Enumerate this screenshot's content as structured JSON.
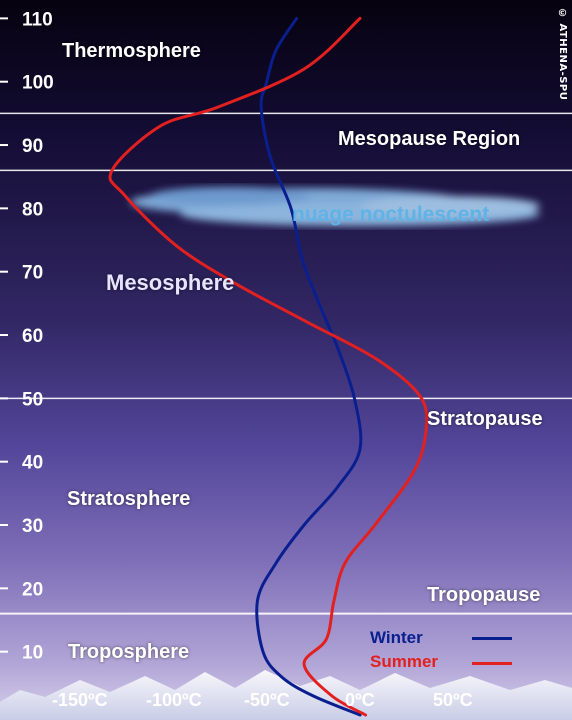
{
  "credit": "© ATHENA-SPU",
  "layers": {
    "thermosphere": "Thermosphere",
    "mesopause": "Mesopause Region",
    "cloud": "nuage noctulescent",
    "mesosphere": "Mesosphere",
    "stratopause": "Stratopause",
    "stratosphere": "Stratosphere",
    "tropopause": "Tropopause",
    "troposphere": "Troposphere"
  },
  "colors": {
    "winter": "#0a1f8f",
    "summer": "#e32020",
    "cloud_text": "#5fb3e6",
    "boundary": "#ffffff"
  },
  "chart_data": {
    "type": "line",
    "yticks": [
      "10",
      "20",
      "30",
      "40",
      "50",
      "60",
      "70",
      "80",
      "90",
      "100",
      "110"
    ],
    "xticks": [
      "-150ºC",
      "-100ºC",
      "-50ºC",
      "0ºC",
      "50ºC"
    ],
    "ylim": [
      0,
      110
    ],
    "xlim": [
      -150,
      50
    ],
    "boundaries": [
      16,
      50,
      86,
      95
    ],
    "series": [
      {
        "name": "Winter",
        "x": [
          0,
          -25,
          -42,
          -52,
          -55,
          -45,
          -30,
          -12,
          0,
          -3,
          -12,
          -22,
          -31,
          -37,
          -48,
          -53,
          -50,
          -45,
          -34
        ],
        "y": [
          0,
          3,
          6,
          10,
          18,
          24,
          30,
          36,
          42,
          50,
          58,
          65,
          72,
          80,
          88,
          96,
          100,
          105,
          110
        ]
      },
      {
        "name": "Summer",
        "x": [
          3,
          -15,
          -30,
          -18,
          -14,
          -8,
          8,
          28,
          35,
          33,
          10,
          -28,
          -66,
          -98,
          -126,
          -133,
          -107,
          -76,
          -30,
          0
        ],
        "y": [
          0,
          3,
          8,
          12,
          18,
          24,
          30,
          38,
          44,
          50,
          56,
          62,
          68,
          74,
          82,
          86,
          93,
          96,
          102,
          110
        ]
      }
    ]
  }
}
